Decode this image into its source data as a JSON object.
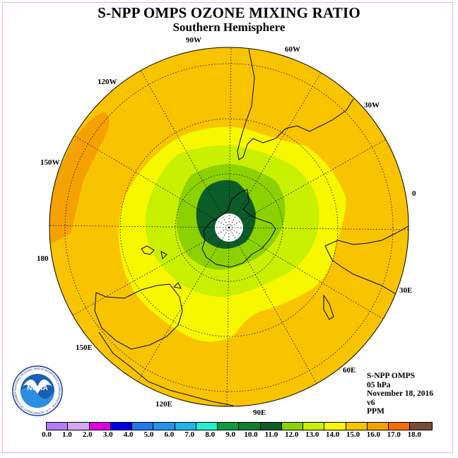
{
  "title": "S-NPP OMPS OZONE MIXING RATIO",
  "subtitle": "Southern Hemisphere",
  "logo": {
    "text": "NOAA",
    "ring_text": "NATIONAL OCEANIC AND ATMOSPHERIC ADMINISTRATION · U.S. DEPARTMENT OF COMMERCE"
  },
  "info": {
    "instrument": "S-NPP OMPS",
    "level": "05 hPa",
    "date": "November 18, 2016",
    "version": "v6",
    "units": "PPM"
  },
  "colorbar": {
    "ticks": [
      "0.0",
      "1.0",
      "2.0",
      "3.0",
      "4.0",
      "5.0",
      "6.0",
      "7.0",
      "8.0",
      "9.0",
      "10.0",
      "11.0",
      "12.0",
      "13.0",
      "14.0",
      "15.0",
      "16.0",
      "17.0",
      "18.0"
    ],
    "colors": [
      "#b27ff5",
      "#d4a7ef",
      "#e000e0",
      "#0000e6",
      "#1e78e6",
      "#2394e8",
      "#21b4e8",
      "#1ff2cc",
      "#0b9a3c",
      "#0e7d2e",
      "#0c5c2a",
      "#8cd100",
      "#c8f000",
      "#f7f700",
      "#f8c400",
      "#f5a100",
      "#f46c00",
      "#e60000",
      "#7a4a3a"
    ]
  },
  "map": {
    "projection": "south-polar-stereographic",
    "longitude_labels": [
      "90W",
      "60W",
      "30W",
      "0",
      "30E",
      "60E",
      "90E",
      "120E",
      "150E",
      "180",
      "150W",
      "120W"
    ],
    "fill_colors": {
      "background": "#f8c400",
      "band_14_15": "#f5a100",
      "band_12_13": "#f7f700",
      "band_11_12": "#c8f000",
      "band_10_11": "#8cd100",
      "band_9_10": "#0c5c2a",
      "pole_hole": "#ffffff"
    }
  }
}
